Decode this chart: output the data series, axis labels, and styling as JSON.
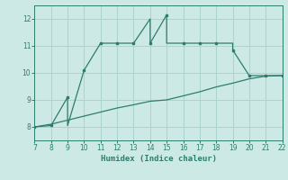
{
  "xlabel": "Humidex (Indice chaleur)",
  "xlim": [
    7,
    22
  ],
  "ylim": [
    7.5,
    12.5
  ],
  "xticks": [
    7,
    8,
    9,
    10,
    11,
    12,
    13,
    14,
    15,
    16,
    17,
    18,
    19,
    20,
    21,
    22
  ],
  "yticks": [
    8,
    9,
    10,
    11,
    12
  ],
  "bg_color": "#cce9e5",
  "line_color": "#2d7d6e",
  "grid_color": "#aad4ce",
  "line1_x": [
    7,
    8,
    9,
    9,
    10,
    11,
    12,
    13,
    14,
    14,
    15,
    15,
    16,
    17,
    18,
    19,
    19,
    20,
    21,
    22
  ],
  "line1_y": [
    8.0,
    8.05,
    9.1,
    8.05,
    10.1,
    11.1,
    11.1,
    11.1,
    12.0,
    11.1,
    12.15,
    11.1,
    11.1,
    11.1,
    11.1,
    11.1,
    10.85,
    9.9,
    9.9,
    9.9
  ],
  "line2_x": [
    7,
    8,
    9,
    10,
    11,
    12,
    13,
    14,
    15,
    16,
    17,
    18,
    19,
    20,
    21,
    22
  ],
  "line2_y": [
    8.0,
    8.1,
    8.25,
    8.4,
    8.55,
    8.7,
    8.82,
    8.95,
    9.0,
    9.15,
    9.3,
    9.48,
    9.62,
    9.78,
    9.88,
    9.9
  ],
  "marker1_x": [
    7,
    8,
    9,
    10,
    11,
    12,
    13,
    14,
    15,
    16,
    17,
    18,
    19,
    20,
    21,
    22
  ],
  "marker1_y": [
    8.0,
    8.05,
    9.1,
    10.1,
    11.1,
    11.1,
    11.1,
    11.1,
    12.15,
    11.1,
    11.1,
    11.1,
    10.85,
    9.9,
    9.9,
    9.9
  ]
}
